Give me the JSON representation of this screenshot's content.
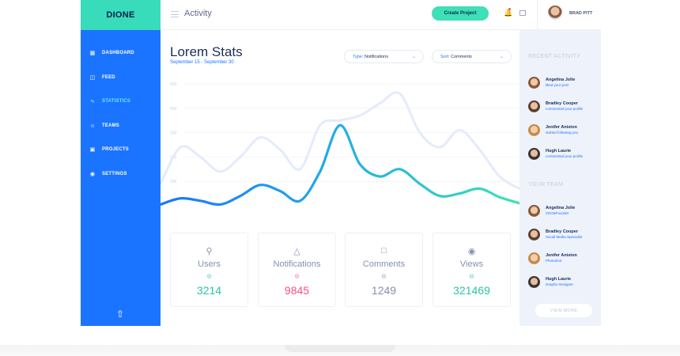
{
  "app": {
    "brand": "DIONE",
    "page_title": "Activity",
    "create_label": "Create Project",
    "user_name": "BRAD PITT"
  },
  "sidebar": {
    "items": [
      {
        "label": "DASHBOARD",
        "icon": "dashboard-icon"
      },
      {
        "label": "FEED",
        "icon": "feed-icon"
      },
      {
        "label": "STATISTICS",
        "icon": "statistics-icon",
        "active": true
      },
      {
        "label": "TEAMS",
        "icon": "teams-icon"
      },
      {
        "label": "PROJECTS",
        "icon": "projects-icon"
      },
      {
        "label": "SETTINGS",
        "icon": "settings-icon"
      }
    ],
    "footer_icon": "share-icon"
  },
  "main": {
    "title": "Lorem Stats",
    "subtitle": "September 15 - September 30",
    "type_filter": {
      "label": "Type:",
      "value": "Notifications"
    },
    "sort_filter": {
      "label": "Sort:",
      "value": "Comments"
    }
  },
  "chart_data": {
    "type": "line",
    "ylabels": [
      "500",
      "400",
      "300",
      "200",
      "100"
    ],
    "ylim": [
      0,
      500
    ],
    "grid": true,
    "x": [
      0,
      1,
      2,
      3,
      4,
      5,
      6,
      7,
      8,
      9,
      10,
      11,
      12,
      13,
      14,
      15,
      16,
      17,
      18
    ],
    "series": [
      {
        "color_start": "#1b74ff",
        "color_end": "#3ee0b6",
        "values": [
          5,
          30,
          20,
          5,
          40,
          85,
          60,
          20,
          140,
          330,
          170,
          120,
          150,
          90,
          40,
          50,
          70,
          35,
          10
        ]
      },
      {
        "color": "#e3ebfb",
        "values": [
          90,
          240,
          200,
          140,
          200,
          280,
          230,
          150,
          330,
          350,
          370,
          420,
          460,
          300,
          240,
          310,
          230,
          120,
          70
        ]
      }
    ]
  },
  "cards": [
    {
      "label": "Users",
      "icon": "user-icon",
      "value": "3214",
      "color": "#28c7a3"
    },
    {
      "label": "Notifications",
      "icon": "bell-icon",
      "value": "9845",
      "color": "#ff4d7e"
    },
    {
      "label": "Comments",
      "icon": "comment-icon",
      "value": "1249",
      "color": "#8390b0"
    },
    {
      "label": "Views",
      "icon": "eye-icon",
      "value": "321469",
      "color": "#28c7a3"
    }
  ],
  "recent_activity": {
    "title": "RECENT ACTIVITY",
    "items": [
      {
        "name": "Angelina Jolie",
        "desc": "liked your post"
      },
      {
        "name": "Bradley Cooper",
        "desc": "commented your profile"
      },
      {
        "name": "Jenifer Aniston",
        "desc": "started following you"
      },
      {
        "name": "Hugh Laurie",
        "desc": "commented your profile"
      }
    ]
  },
  "your_team": {
    "title": "YOUR TEAM",
    "items": [
      {
        "name": "Angelina Jolie",
        "desc": "CEO&Founder"
      },
      {
        "name": "Bradley Cooper",
        "desc": "Social Media Specialist"
      },
      {
        "name": "Jenifer Aniston",
        "desc": "Photoshot"
      },
      {
        "name": "Hugh Laurie",
        "desc": "Graphic Designer"
      }
    ],
    "view_more": "VIEW MORE"
  }
}
